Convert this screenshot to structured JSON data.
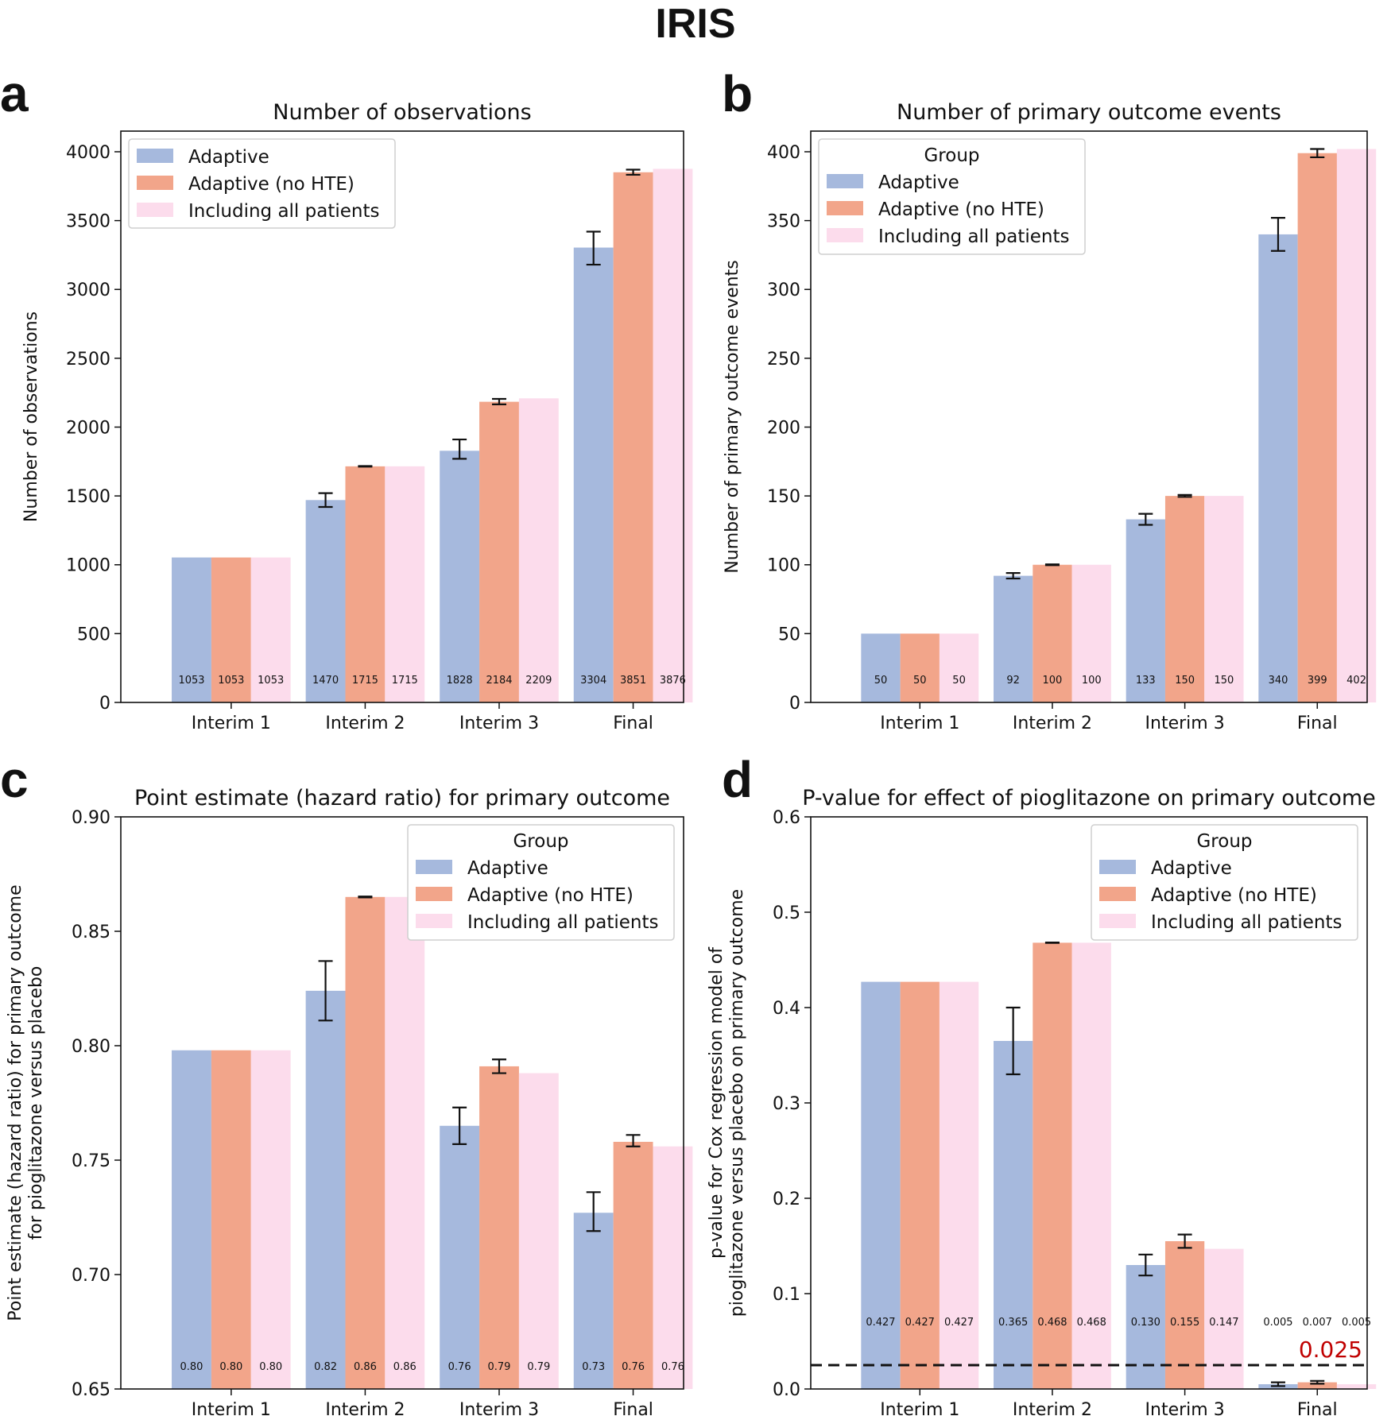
{
  "figure_title": "IRIS",
  "colors": {
    "adaptive": "#a6b9dd",
    "adaptive_no_hte": "#f2a58a",
    "all_patients": "#fcdcec",
    "threshold_text": "#c00000"
  },
  "chart_data": [
    {
      "panel": "a",
      "type": "bar",
      "title": "Number of observations",
      "xlabel": "",
      "ylabel": "Number of observations",
      "ylim": [
        0,
        4150
      ],
      "yticks": [
        0,
        500,
        1000,
        1500,
        2000,
        2500,
        3000,
        3500,
        4000
      ],
      "ytick_labels": [
        "0",
        "500",
        "1000",
        "1500",
        "2000",
        "2500",
        "3000",
        "3500",
        "4000"
      ],
      "categories": [
        "Interim 1",
        "Interim 2",
        "Interim 3",
        "Final"
      ],
      "legend": {
        "title": "",
        "entries": [
          "Adaptive",
          "Adaptive (no HTE)",
          "Including all patients"
        ],
        "position": "upper-left"
      },
      "series": [
        {
          "name": "Adaptive",
          "values": [
            1053,
            1470,
            1828,
            3304
          ],
          "err_low": [
            1053,
            1420,
            1770,
            3180
          ],
          "err_high": [
            1053,
            1520,
            1910,
            3420
          ],
          "labels": [
            "1053",
            "1470",
            "1828",
            "3304"
          ]
        },
        {
          "name": "Adaptive (no HTE)",
          "values": [
            1053,
            1715,
            2184,
            3851
          ],
          "err_low": [
            1053,
            1713,
            2165,
            3833
          ],
          "err_high": [
            1053,
            1717,
            2205,
            3870
          ],
          "labels": [
            "1053",
            "1715",
            "2184",
            "3851"
          ]
        },
        {
          "name": "Including all patients",
          "values": [
            1053,
            1715,
            2209,
            3876
          ],
          "labels": [
            "1053",
            "1715",
            "2209",
            "3876"
          ]
        }
      ]
    },
    {
      "panel": "b",
      "type": "bar",
      "title": "Number of primary outcome events",
      "xlabel": "",
      "ylabel": "Number of primary outcome events",
      "ylim": [
        0,
        415
      ],
      "yticks": [
        0,
        50,
        100,
        150,
        200,
        250,
        300,
        350,
        400
      ],
      "ytick_labels": [
        "0",
        "50",
        "100",
        "150",
        "200",
        "250",
        "300",
        "350",
        "400"
      ],
      "categories": [
        "Interim 1",
        "Interim 2",
        "Interim 3",
        "Final"
      ],
      "legend": {
        "title": "Group",
        "entries": [
          "Adaptive",
          "Adaptive (no HTE)",
          "Including all patients"
        ],
        "position": "upper-left"
      },
      "series": [
        {
          "name": "Adaptive",
          "values": [
            50,
            92,
            133,
            340
          ],
          "err_low": [
            50,
            90,
            129,
            328
          ],
          "err_high": [
            50,
            94,
            137,
            352
          ],
          "labels": [
            "50",
            "92",
            "133",
            "340"
          ]
        },
        {
          "name": "Adaptive (no HTE)",
          "values": [
            50,
            100,
            150,
            399
          ],
          "err_low": [
            50,
            99.7,
            149.3,
            396
          ],
          "err_high": [
            50,
            100.3,
            150.7,
            402
          ],
          "labels": [
            "50",
            "100",
            "150",
            "399"
          ]
        },
        {
          "name": "Including all patients",
          "values": [
            50,
            100,
            150,
            402
          ],
          "labels": [
            "50",
            "100",
            "150",
            "402"
          ]
        }
      ]
    },
    {
      "panel": "c",
      "type": "bar",
      "title": "Point estimate (hazard ratio) for primary outcome",
      "xlabel": "",
      "ylabel": "Point estimate (hazard ratio) for primary outcome",
      "ylabel2": "for pioglitazone versus placebo",
      "ylim": [
        0.65,
        0.9
      ],
      "yticks": [
        0.65,
        0.7,
        0.75,
        0.8,
        0.85,
        0.9
      ],
      "ytick_labels": [
        "0.65",
        "0.70",
        "0.75",
        "0.80",
        "0.85",
        "0.90"
      ],
      "categories": [
        "Interim 1",
        "Interim 2",
        "Interim 3",
        "Final"
      ],
      "legend": {
        "title": "Group",
        "entries": [
          "Adaptive",
          "Adaptive (no HTE)",
          "Including all patients"
        ],
        "position": "upper-right"
      },
      "series": [
        {
          "name": "Adaptive",
          "values": [
            0.798,
            0.824,
            0.765,
            0.727
          ],
          "err_low": [
            0.798,
            0.811,
            0.757,
            0.719
          ],
          "err_high": [
            0.798,
            0.837,
            0.773,
            0.736
          ],
          "labels": [
            "0.80",
            "0.82",
            "0.76",
            "0.73"
          ]
        },
        {
          "name": "Adaptive (no HTE)",
          "values": [
            0.798,
            0.865,
            0.791,
            0.758
          ],
          "err_low": [
            0.798,
            0.8648,
            0.788,
            0.756
          ],
          "err_high": [
            0.798,
            0.8652,
            0.794,
            0.761
          ],
          "labels": [
            "0.80",
            "0.86",
            "0.79",
            "0.76"
          ]
        },
        {
          "name": "Including all patients",
          "values": [
            0.798,
            0.865,
            0.788,
            0.756
          ],
          "labels": [
            "0.80",
            "0.86",
            "0.79",
            "0.76"
          ]
        }
      ]
    },
    {
      "panel": "d",
      "type": "bar",
      "title": "P-value for effect of pioglitazone on primary outcome",
      "xlabel": "",
      "ylabel": "p-value for Cox regression model of",
      "ylabel2": "pioglitazone versus placebo on primary outcome",
      "ylim": [
        0,
        0.6
      ],
      "yticks": [
        0,
        0.1,
        0.2,
        0.3,
        0.4,
        0.5,
        0.6
      ],
      "ytick_labels": [
        "0.0",
        "0.1",
        "0.2",
        "0.3",
        "0.4",
        "0.5",
        "0.6"
      ],
      "categories": [
        "Interim 1",
        "Interim 2",
        "Interim 3",
        "Final"
      ],
      "legend": {
        "title": "Group",
        "entries": [
          "Adaptive",
          "Adaptive (no HTE)",
          "Including all patients"
        ],
        "position": "upper-right"
      },
      "threshold": {
        "value": 0.025,
        "label": "0.025"
      },
      "series": [
        {
          "name": "Adaptive",
          "values": [
            0.427,
            0.365,
            0.13,
            0.005
          ],
          "err_low": [
            0.427,
            0.33,
            0.119,
            0.003
          ],
          "err_high": [
            0.427,
            0.4,
            0.141,
            0.007
          ],
          "labels": [
            "0.427",
            "0.365",
            "0.130",
            "0.005"
          ]
        },
        {
          "name": "Adaptive (no HTE)",
          "values": [
            0.427,
            0.468,
            0.155,
            0.007
          ],
          "err_low": [
            0.427,
            0.4678,
            0.148,
            0.0055
          ],
          "err_high": [
            0.427,
            0.4682,
            0.162,
            0.0085
          ],
          "labels": [
            "0.427",
            "0.468",
            "0.155",
            "0.007"
          ]
        },
        {
          "name": "Including all patients",
          "values": [
            0.427,
            0.468,
            0.147,
            0.005
          ],
          "labels": [
            "0.427",
            "0.468",
            "0.147",
            "0.005"
          ]
        }
      ]
    }
  ]
}
